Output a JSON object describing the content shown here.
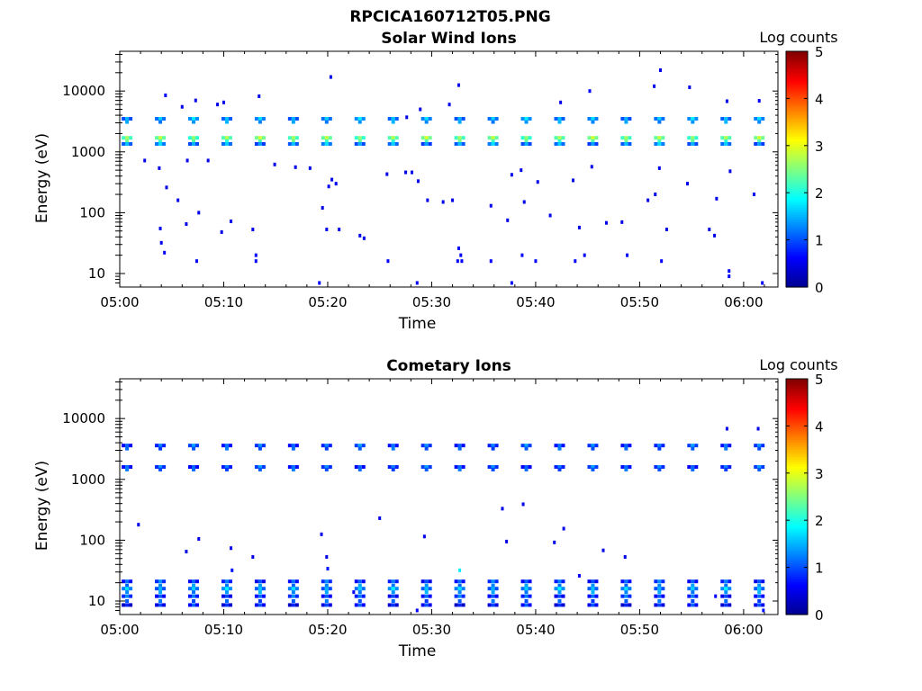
{
  "figure_title": "RPCICA160712T05.PNG",
  "colorbar": {
    "label": "Log counts",
    "ticks": [
      "0",
      "1",
      "2",
      "3",
      "4",
      "5"
    ],
    "range": [
      0,
      5
    ],
    "colormap": [
      "#00008f",
      "#0000ff",
      "#0080ff",
      "#00ffff",
      "#80ff80",
      "#ffff00",
      "#ff8000",
      "#ff0000",
      "#800000"
    ]
  },
  "chart_data": [
    {
      "type": "heatmap",
      "title": "Solar Wind Ions",
      "xlabel": "Time",
      "ylabel": "Energy (eV)",
      "x_ticks": [
        "05:00",
        "05:10",
        "05:20",
        "05:30",
        "05:40",
        "05:50",
        "06:00"
      ],
      "x_tick_minutes": [
        0,
        10,
        20,
        30,
        40,
        50,
        60
      ],
      "xlim_minutes": [
        0,
        63.3
      ],
      "y_ticks": [
        "10",
        "100",
        "1000",
        "10000"
      ],
      "y_tick_values": [
        10,
        100,
        1000,
        10000
      ],
      "ylim": [
        6,
        45000
      ],
      "y_scale": "log",
      "color_label": "Log counts",
      "bands": {
        "sweep_minutes": [
          0.7,
          3.9,
          7.1,
          10.3,
          13.5,
          16.7,
          19.9,
          23.1,
          26.3,
          29.5,
          32.7,
          35.9,
          39.1,
          42.3,
          45.5,
          48.7,
          51.9,
          55.1,
          58.3,
          61.5
        ],
        "points": [
          {
            "energy": 3500,
            "level": 1.2
          },
          {
            "energy": 3100,
            "level": 0.9
          },
          {
            "energy": 1700,
            "level": 2.3
          },
          {
            "energy": 1500,
            "level": 1.8
          },
          {
            "energy": 1350,
            "level": 1.1
          }
        ]
      },
      "points": [
        {
          "t": 4.4,
          "e": 8500,
          "v": 0.6
        },
        {
          "t": 6.0,
          "e": 5500,
          "v": 0.5
        },
        {
          "t": 7.3,
          "e": 7000,
          "v": 0.5
        },
        {
          "t": 9.4,
          "e": 6000,
          "v": 0.5
        },
        {
          "t": 10.0,
          "e": 6500,
          "v": 0.5
        },
        {
          "t": 13.4,
          "e": 8200,
          "v": 0.5
        },
        {
          "t": 20.3,
          "e": 17000,
          "v": 0.5
        },
        {
          "t": 27.6,
          "e": 3700,
          "v": 0.5
        },
        {
          "t": 28.9,
          "e": 5000,
          "v": 0.5
        },
        {
          "t": 32.6,
          "e": 12500,
          "v": 0.5
        },
        {
          "t": 31.7,
          "e": 6000,
          "v": 0.5
        },
        {
          "t": 42.4,
          "e": 6500,
          "v": 0.5
        },
        {
          "t": 45.2,
          "e": 10000,
          "v": 0.6
        },
        {
          "t": 51.4,
          "e": 12000,
          "v": 0.5
        },
        {
          "t": 52.0,
          "e": 22000,
          "v": 0.5
        },
        {
          "t": 54.8,
          "e": 11500,
          "v": 0.5
        },
        {
          "t": 58.4,
          "e": 6800,
          "v": 0.5
        },
        {
          "t": 61.5,
          "e": 6900,
          "v": 0.6
        },
        {
          "t": 2.4,
          "e": 720,
          "v": 0.5
        },
        {
          "t": 3.8,
          "e": 540,
          "v": 0.5
        },
        {
          "t": 6.5,
          "e": 720,
          "v": 0.5
        },
        {
          "t": 8.5,
          "e": 720,
          "v": 0.5
        },
        {
          "t": 14.9,
          "e": 620,
          "v": 0.5
        },
        {
          "t": 16.9,
          "e": 560,
          "v": 0.5
        },
        {
          "t": 18.3,
          "e": 540,
          "v": 0.5
        },
        {
          "t": 20.4,
          "e": 350,
          "v": 0.5
        },
        {
          "t": 20.8,
          "e": 300,
          "v": 0.5
        },
        {
          "t": 20.1,
          "e": 270,
          "v": 0.5
        },
        {
          "t": 25.7,
          "e": 430,
          "v": 0.5
        },
        {
          "t": 27.5,
          "e": 460,
          "v": 0.5
        },
        {
          "t": 28.1,
          "e": 460,
          "v": 0.5
        },
        {
          "t": 28.7,
          "e": 330,
          "v": 0.5
        },
        {
          "t": 29.6,
          "e": 160,
          "v": 0.5
        },
        {
          "t": 31.1,
          "e": 150,
          "v": 0.5
        },
        {
          "t": 32.0,
          "e": 160,
          "v": 0.5
        },
        {
          "t": 35.7,
          "e": 130,
          "v": 0.5
        },
        {
          "t": 37.7,
          "e": 420,
          "v": 0.5
        },
        {
          "t": 38.6,
          "e": 500,
          "v": 0.5
        },
        {
          "t": 38.9,
          "e": 150,
          "v": 0.5
        },
        {
          "t": 40.2,
          "e": 320,
          "v": 0.5
        },
        {
          "t": 43.6,
          "e": 340,
          "v": 0.5
        },
        {
          "t": 45.4,
          "e": 570,
          "v": 0.5
        },
        {
          "t": 50.8,
          "e": 160,
          "v": 0.5
        },
        {
          "t": 51.5,
          "e": 200,
          "v": 0.5
        },
        {
          "t": 51.9,
          "e": 540,
          "v": 0.5
        },
        {
          "t": 54.6,
          "e": 300,
          "v": 0.5
        },
        {
          "t": 57.4,
          "e": 170,
          "v": 0.5
        },
        {
          "t": 58.7,
          "e": 480,
          "v": 0.5
        },
        {
          "t": 61.0,
          "e": 200,
          "v": 0.5
        },
        {
          "t": 4.5,
          "e": 260,
          "v": 0.5
        },
        {
          "t": 5.6,
          "e": 160,
          "v": 0.5
        },
        {
          "t": 7.6,
          "e": 100,
          "v": 0.5
        },
        {
          "t": 6.4,
          "e": 65,
          "v": 0.5
        },
        {
          "t": 10.7,
          "e": 72,
          "v": 0.5
        },
        {
          "t": 9.8,
          "e": 48,
          "v": 0.5
        },
        {
          "t": 12.8,
          "e": 53,
          "v": 0.5
        },
        {
          "t": 19.5,
          "e": 120,
          "v": 0.5
        },
        {
          "t": 19.9,
          "e": 53,
          "v": 0.5
        },
        {
          "t": 21.1,
          "e": 53,
          "v": 0.5
        },
        {
          "t": 23.1,
          "e": 42,
          "v": 0.5
        },
        {
          "t": 23.5,
          "e": 38,
          "v": 0.5
        },
        {
          "t": 37.3,
          "e": 75,
          "v": 0.5
        },
        {
          "t": 41.4,
          "e": 90,
          "v": 0.5
        },
        {
          "t": 44.2,
          "e": 57,
          "v": 0.5
        },
        {
          "t": 46.8,
          "e": 68,
          "v": 0.5
        },
        {
          "t": 48.3,
          "e": 70,
          "v": 0.5
        },
        {
          "t": 52.6,
          "e": 53,
          "v": 0.5
        },
        {
          "t": 56.7,
          "e": 53,
          "v": 0.5
        },
        {
          "t": 57.2,
          "e": 42,
          "v": 0.5
        },
        {
          "t": 3.9,
          "e": 55,
          "v": 0.5
        },
        {
          "t": 4.0,
          "e": 32,
          "v": 0.5
        },
        {
          "t": 4.3,
          "e": 22,
          "v": 0.6
        },
        {
          "t": 7.4,
          "e": 16,
          "v": 0.6
        },
        {
          "t": 13.1,
          "e": 20,
          "v": 0.6
        },
        {
          "t": 13.1,
          "e": 16,
          "v": 0.6
        },
        {
          "t": 19.2,
          "e": 7,
          "v": 0.6
        },
        {
          "t": 25.8,
          "e": 16,
          "v": 0.6
        },
        {
          "t": 28.6,
          "e": 7,
          "v": 0.6
        },
        {
          "t": 32.6,
          "e": 26,
          "v": 0.6
        },
        {
          "t": 32.8,
          "e": 20,
          "v": 0.6
        },
        {
          "t": 32.5,
          "e": 16,
          "v": 0.6
        },
        {
          "t": 32.9,
          "e": 16,
          "v": 0.6
        },
        {
          "t": 35.7,
          "e": 16,
          "v": 0.6
        },
        {
          "t": 37.7,
          "e": 7,
          "v": 0.6
        },
        {
          "t": 38.7,
          "e": 20,
          "v": 0.6
        },
        {
          "t": 40.0,
          "e": 16,
          "v": 0.6
        },
        {
          "t": 43.8,
          "e": 16,
          "v": 0.6
        },
        {
          "t": 44.7,
          "e": 20,
          "v": 0.6
        },
        {
          "t": 48.8,
          "e": 20,
          "v": 0.6
        },
        {
          "t": 52.1,
          "e": 16,
          "v": 0.6
        },
        {
          "t": 58.6,
          "e": 11,
          "v": 0.6
        },
        {
          "t": 58.6,
          "e": 9,
          "v": 0.6
        },
        {
          "t": 61.8,
          "e": 7,
          "v": 0.6
        }
      ]
    },
    {
      "type": "heatmap",
      "title": "Cometary Ions",
      "xlabel": "Time",
      "ylabel": "Energy (eV)",
      "x_ticks": [
        "05:00",
        "05:10",
        "05:20",
        "05:30",
        "05:40",
        "05:50",
        "06:00"
      ],
      "x_tick_minutes": [
        0,
        10,
        20,
        30,
        40,
        50,
        60
      ],
      "xlim_minutes": [
        0,
        63.3
      ],
      "y_ticks": [
        "10",
        "100",
        "1000",
        "10000"
      ],
      "y_tick_values": [
        10,
        100,
        1000,
        10000
      ],
      "ylim": [
        6,
        45000
      ],
      "y_scale": "log",
      "color_label": "Log counts",
      "bands": {
        "sweep_minutes": [
          0.7,
          3.9,
          7.1,
          10.3,
          13.5,
          16.7,
          19.9,
          23.1,
          26.3,
          29.5,
          32.7,
          35.9,
          39.1,
          42.3,
          45.5,
          48.7,
          51.9,
          55.1,
          58.3,
          61.5
        ],
        "points": [
          {
            "energy": 3600,
            "level": 0.8
          },
          {
            "energy": 3200,
            "level": 0.6
          },
          {
            "energy": 1600,
            "level": 0.8
          },
          {
            "energy": 1450,
            "level": 0.6
          },
          {
            "energy": 21,
            "level": 0.7
          },
          {
            "energy": 18,
            "level": 0.8
          },
          {
            "energy": 16,
            "level": 1.2
          },
          {
            "energy": 14,
            "level": 0.9
          },
          {
            "energy": 12,
            "level": 0.7
          },
          {
            "energy": 10,
            "level": 0.6
          },
          {
            "energy": 8.6,
            "level": 0.5
          }
        ]
      },
      "points": [
        {
          "t": 1.8,
          "e": 180,
          "v": 0.5
        },
        {
          "t": 6.4,
          "e": 65,
          "v": 0.5
        },
        {
          "t": 7.6,
          "e": 105,
          "v": 0.5
        },
        {
          "t": 10.7,
          "e": 74,
          "v": 0.5
        },
        {
          "t": 12.8,
          "e": 53,
          "v": 0.5
        },
        {
          "t": 19.4,
          "e": 125,
          "v": 0.5
        },
        {
          "t": 19.9,
          "e": 53,
          "v": 0.5
        },
        {
          "t": 25.0,
          "e": 230,
          "v": 0.5
        },
        {
          "t": 29.3,
          "e": 115,
          "v": 0.5
        },
        {
          "t": 36.8,
          "e": 330,
          "v": 0.5
        },
        {
          "t": 37.2,
          "e": 95,
          "v": 0.5
        },
        {
          "t": 38.8,
          "e": 390,
          "v": 0.5
        },
        {
          "t": 41.8,
          "e": 92,
          "v": 0.5
        },
        {
          "t": 42.7,
          "e": 155,
          "v": 0.5
        },
        {
          "t": 46.5,
          "e": 68,
          "v": 0.5
        },
        {
          "t": 48.6,
          "e": 53,
          "v": 0.5
        },
        {
          "t": 58.4,
          "e": 6800,
          "v": 0.5
        },
        {
          "t": 61.4,
          "e": 6800,
          "v": 0.5
        },
        {
          "t": 20.0,
          "e": 34,
          "v": 0.7
        },
        {
          "t": 10.8,
          "e": 32,
          "v": 0.7
        },
        {
          "t": 32.7,
          "e": 32,
          "v": 1.8
        },
        {
          "t": 44.2,
          "e": 26,
          "v": 0.6
        },
        {
          "t": 28.6,
          "e": 7,
          "v": 0.6
        },
        {
          "t": 61.9,
          "e": 7,
          "v": 0.7
        },
        {
          "t": 22.5,
          "e": 14,
          "v": 0.6
        },
        {
          "t": 35.5,
          "e": 12,
          "v": 0.7
        },
        {
          "t": 57.3,
          "e": 12,
          "v": 0.6
        }
      ]
    }
  ]
}
